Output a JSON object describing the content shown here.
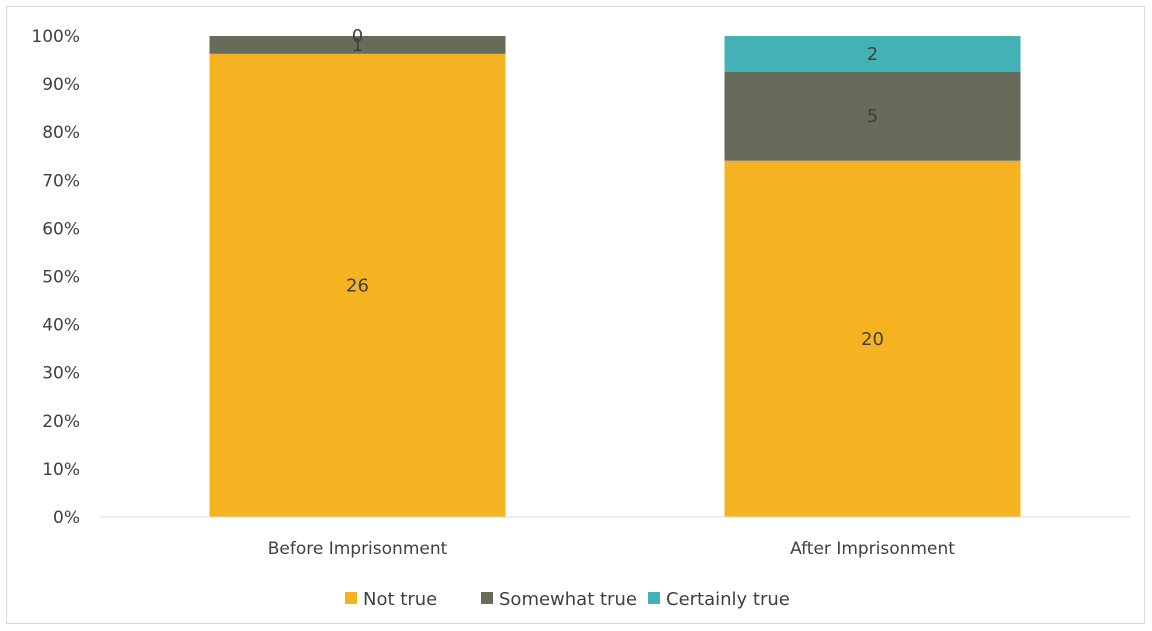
{
  "chart_data": {
    "type": "bar",
    "stacked": "percent",
    "categories": [
      "Before Imprisonment",
      "After Imprisonment"
    ],
    "series": [
      {
        "name": "Not true",
        "values": [
          26,
          20
        ],
        "color": "#F5B321"
      },
      {
        "name": "Somewhat true",
        "values": [
          1,
          5
        ],
        "color": "#676B5A"
      },
      {
        "name": "Certainly true",
        "values": [
          0,
          2
        ],
        "color": "#43B1B5"
      }
    ],
    "data_labels": [
      [
        "26",
        "20"
      ],
      [
        "1",
        "5"
      ],
      [
        "0",
        "2"
      ]
    ],
    "yticks": [
      "0%",
      "10%",
      "20%",
      "30%",
      "40%",
      "50%",
      "60%",
      "70%",
      "80%",
      "90%",
      "100%"
    ],
    "ylim": [
      0,
      100
    ],
    "grid": false,
    "legend_position": "bottom"
  }
}
